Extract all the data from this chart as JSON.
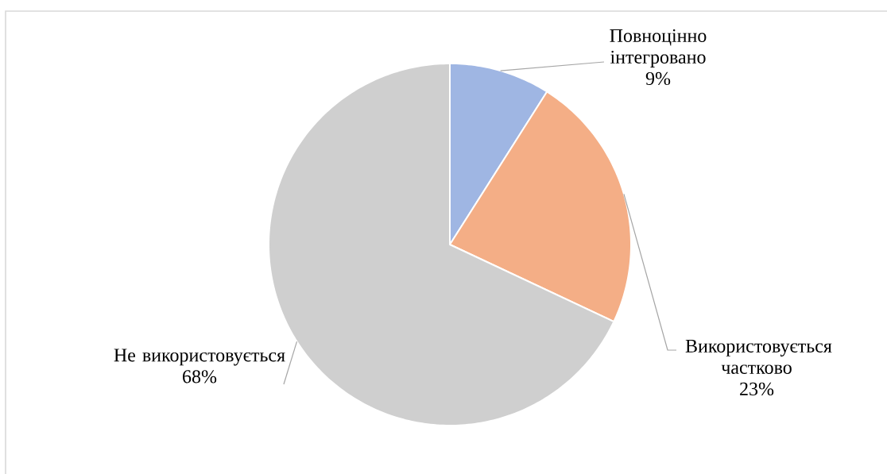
{
  "chart_data": {
    "type": "pie",
    "categories": [
      "Повноцінно інтегровано",
      "Використовується частково",
      "Не використовується"
    ],
    "values": [
      9,
      23,
      68
    ],
    "colors": [
      "#9fb6e3",
      "#f4ae86",
      "#cfcfcf"
    ],
    "value_labels": [
      "9%",
      "23%",
      "68%"
    ]
  }
}
